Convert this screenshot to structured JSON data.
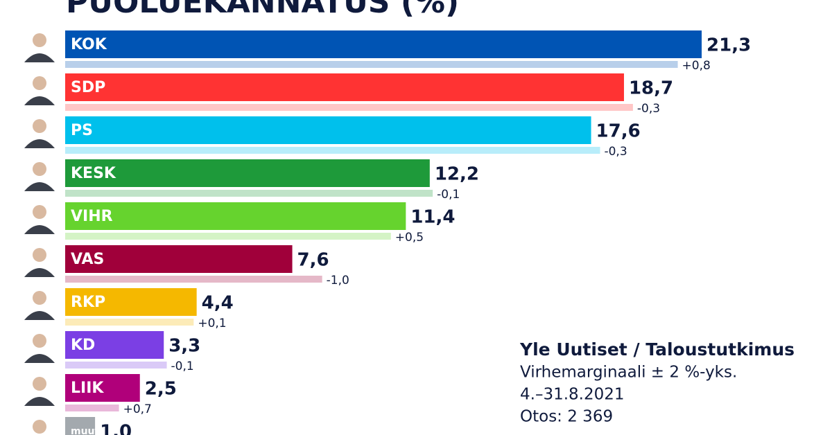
{
  "chart_data": {
    "type": "bar",
    "title": "PUOLUEKANNATUS (%)",
    "categories": [
      "KOK",
      "SDP",
      "PS",
      "KESK",
      "VIHR",
      "VAS",
      "RKP",
      "KD",
      "LIIK",
      "muut"
    ],
    "values": [
      21.3,
      18.7,
      17.6,
      12.2,
      11.4,
      7.6,
      4.4,
      3.3,
      2.5,
      1.0
    ],
    "value_labels": [
      "21,3",
      "18,7",
      "17,6",
      "12,2",
      "11,4",
      "7,6",
      "4,4",
      "3,3",
      "2,5",
      "1,0"
    ],
    "changes": [
      0.8,
      -0.3,
      -0.3,
      -0.1,
      0.5,
      -1.0,
      0.1,
      -0.1,
      0.7,
      null
    ],
    "change_labels": [
      "+0,8",
      "-0,3",
      "-0,3",
      "-0,1",
      "+0,5",
      "-1,0",
      "+0,1",
      "-0,1",
      "+0,7",
      null
    ],
    "colors": [
      "#0054b4",
      "#ff3333",
      "#00c0ec",
      "#1e9a3a",
      "#66d32e",
      "#a0003a",
      "#f5b800",
      "#7b3fe4",
      "#b0007a",
      "#a3a9ae"
    ],
    "source": [
      "Yle Uutiset / Taloustutkimus",
      "Virhemarginaali ± 2 %-yks.",
      "4.–31.8.2021",
      "Otos: 2 369"
    ]
  }
}
